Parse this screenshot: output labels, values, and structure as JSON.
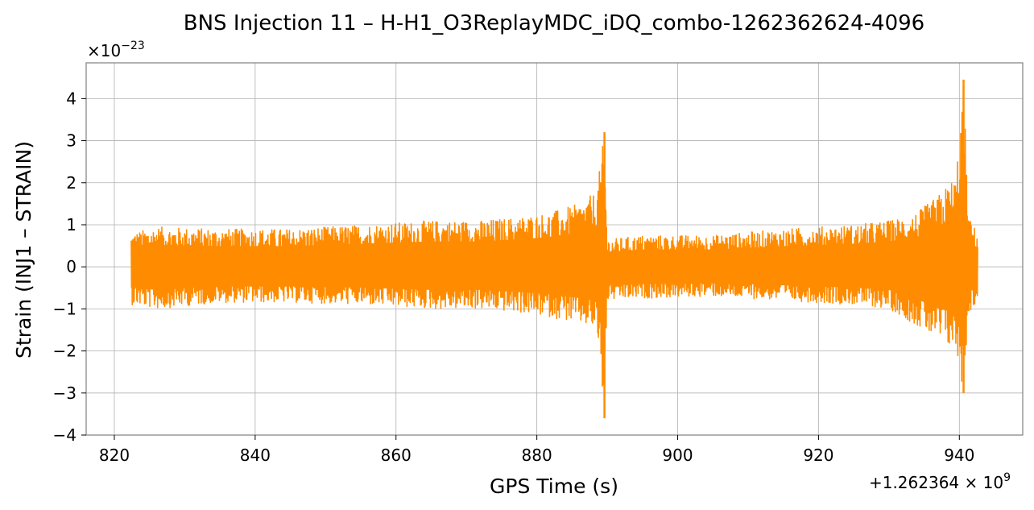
{
  "chart_data": {
    "type": "line",
    "title": "BNS Injection 11 – H-H1_O3ReplayMDC_iDQ_combo-1262362624-4096",
    "xlabel": "GPS Time (s)",
    "ylabel": "Strain (INJ1 – STRAIN)",
    "x_offset_label": "+1.262364 × 10",
    "x_offset_exp": "9",
    "y_scale_label": "×10",
    "y_scale_exp": "−23",
    "xlim": [
      816,
      949
    ],
    "ylim": [
      -4,
      4.85
    ],
    "grid": true,
    "x_ticks": [
      820,
      840,
      860,
      880,
      900,
      920,
      940
    ],
    "x_tick_labels": [
      "820",
      "840",
      "860",
      "880",
      "900",
      "920",
      "940"
    ],
    "y_ticks": [
      -4,
      -3,
      -2,
      -1,
      0,
      1,
      2,
      3,
      4
    ],
    "y_tick_labels": [
      "−4",
      "−3",
      "−2",
      "−1",
      "0",
      "1",
      "2",
      "3",
      "4"
    ],
    "series": [
      {
        "color": "#ff8c00",
        "x_range": [
          822.4,
          942.6
        ],
        "envelope": [
          {
            "x": 822.4,
            "max": 0.8,
            "min": -0.9
          },
          {
            "x": 826,
            "max": 0.95,
            "min": -1.0
          },
          {
            "x": 835,
            "max": 0.9,
            "min": -0.85
          },
          {
            "x": 845,
            "max": 0.9,
            "min": -0.85
          },
          {
            "x": 855,
            "max": 1.0,
            "min": -0.9
          },
          {
            "x": 865,
            "max": 1.1,
            "min": -1.0
          },
          {
            "x": 872,
            "max": 1.1,
            "min": -1.0
          },
          {
            "x": 878,
            "max": 1.2,
            "min": -1.1
          },
          {
            "x": 882,
            "max": 1.3,
            "min": -1.2
          },
          {
            "x": 886,
            "max": 1.5,
            "min": -1.35
          },
          {
            "x": 888.5,
            "max": 1.8,
            "min": -1.5
          },
          {
            "x": 889.6,
            "max": 3.2,
            "min": -3.6
          },
          {
            "x": 890,
            "max": 0.65,
            "min": -0.8
          },
          {
            "x": 895,
            "max": 0.75,
            "min": -0.75
          },
          {
            "x": 905,
            "max": 0.75,
            "min": -0.7
          },
          {
            "x": 915,
            "max": 0.9,
            "min": -0.8
          },
          {
            "x": 925,
            "max": 1.0,
            "min": -0.9
          },
          {
            "x": 930,
            "max": 1.1,
            "min": -1.0
          },
          {
            "x": 934,
            "max": 1.3,
            "min": -1.4
          },
          {
            "x": 937,
            "max": 1.7,
            "min": -1.8
          },
          {
            "x": 939.5,
            "max": 2.2,
            "min": -2.0
          },
          {
            "x": 940.6,
            "max": 4.45,
            "min": -3.0
          },
          {
            "x": 941.3,
            "max": 1.2,
            "min": -1.1
          },
          {
            "x": 942.6,
            "max": 0.8,
            "min": -0.85
          }
        ]
      }
    ]
  }
}
